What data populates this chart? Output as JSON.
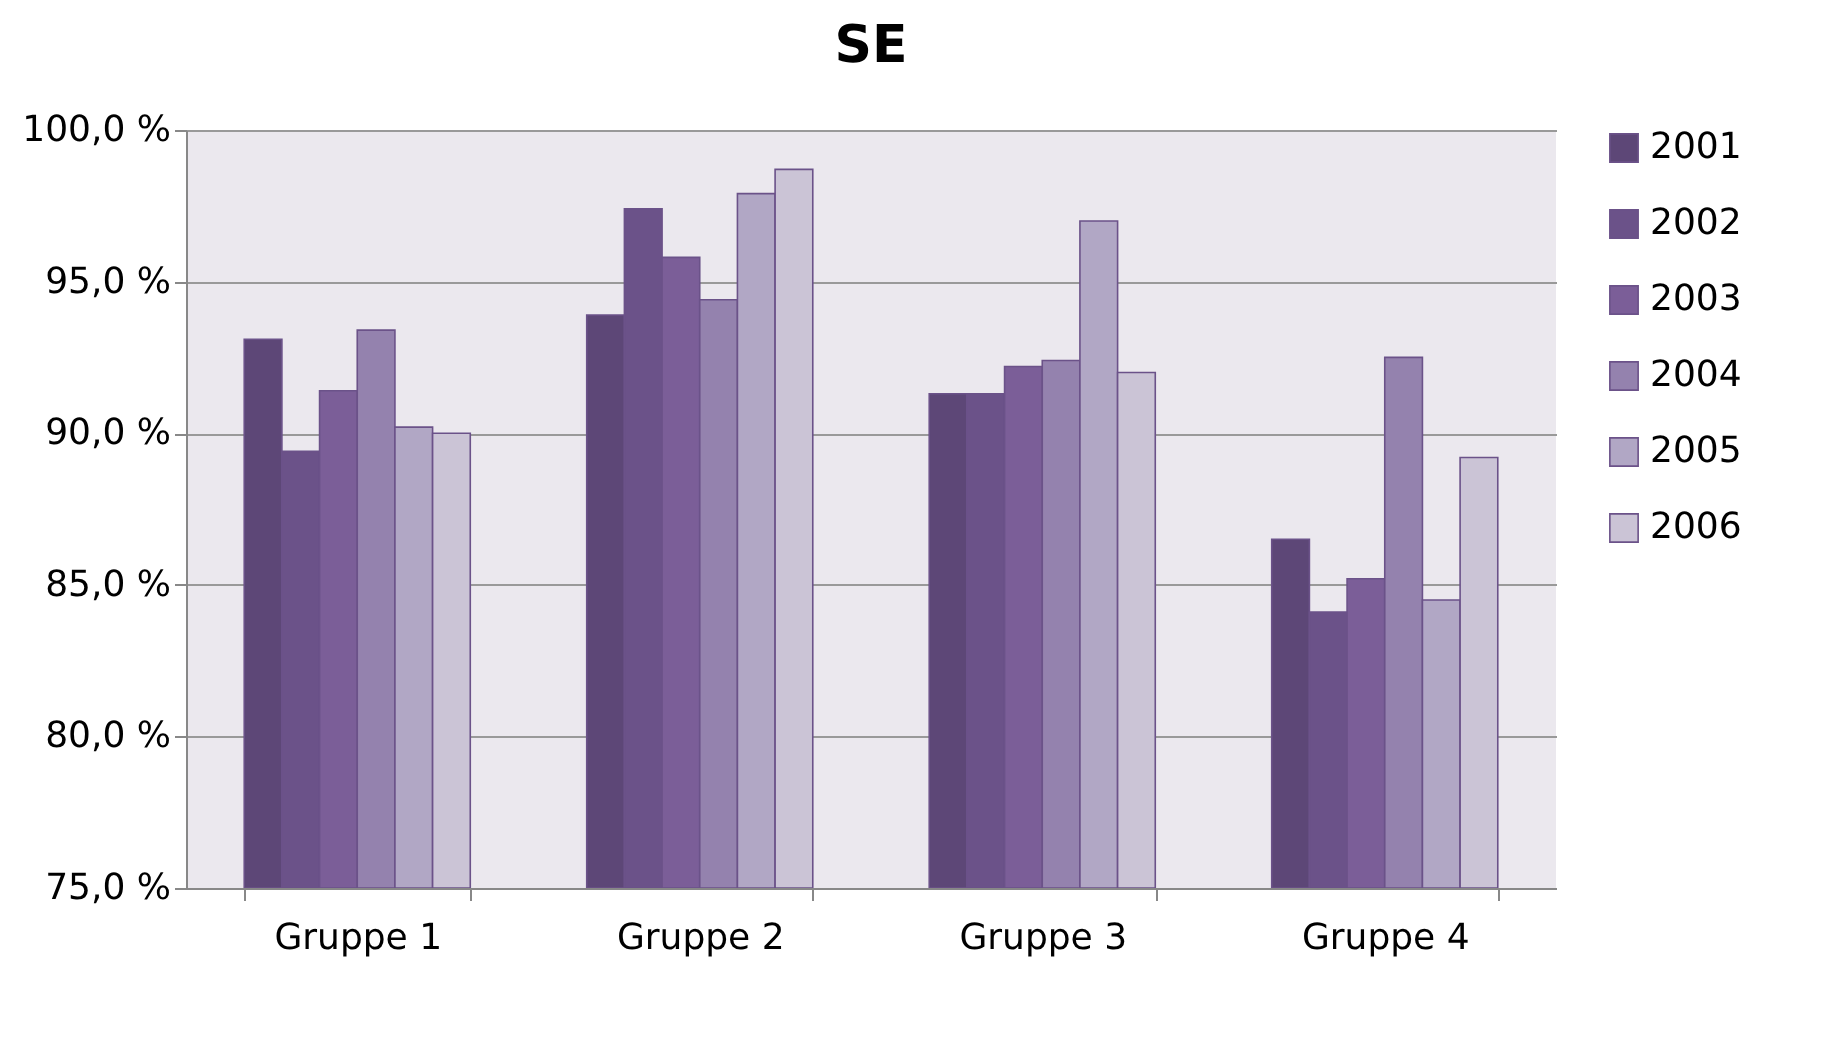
{
  "chart_data": {
    "type": "bar",
    "title": "SE",
    "categories": [
      "Gruppe 1",
      "Gruppe 2",
      "Gruppe 3",
      "Gruppe 4"
    ],
    "series": [
      {
        "name": "2001",
        "color": "#5d4777",
        "values": [
          93.1,
          93.9,
          91.3,
          86.5
        ]
      },
      {
        "name": "2002",
        "color": "#6b5289",
        "values": [
          89.4,
          97.4,
          91.3,
          84.1
        ]
      },
      {
        "name": "2003",
        "color": "#7b5e98",
        "values": [
          91.4,
          95.8,
          92.2,
          85.2
        ]
      },
      {
        "name": "2004",
        "color": "#9482ae",
        "values": [
          93.4,
          94.4,
          92.4,
          92.5
        ]
      },
      {
        "name": "2005",
        "color": "#b1a7c5",
        "values": [
          90.2,
          97.9,
          97.0,
          84.5
        ]
      },
      {
        "name": "2006",
        "color": "#cbc4d6",
        "values": [
          90.0,
          98.7,
          92.0,
          89.2
        ]
      }
    ],
    "ylim": [
      75,
      100
    ],
    "yticks": [
      {
        "value": 75,
        "label": "75,0 %"
      },
      {
        "value": 80,
        "label": "80,0 %"
      },
      {
        "value": 85,
        "label": "85,0 %"
      },
      {
        "value": 90,
        "label": "90,0 %"
      },
      {
        "value": 95,
        "label": "95,0 %"
      },
      {
        "value": 100,
        "label": "100,0 %"
      }
    ],
    "grid": "y",
    "legend": "right"
  }
}
